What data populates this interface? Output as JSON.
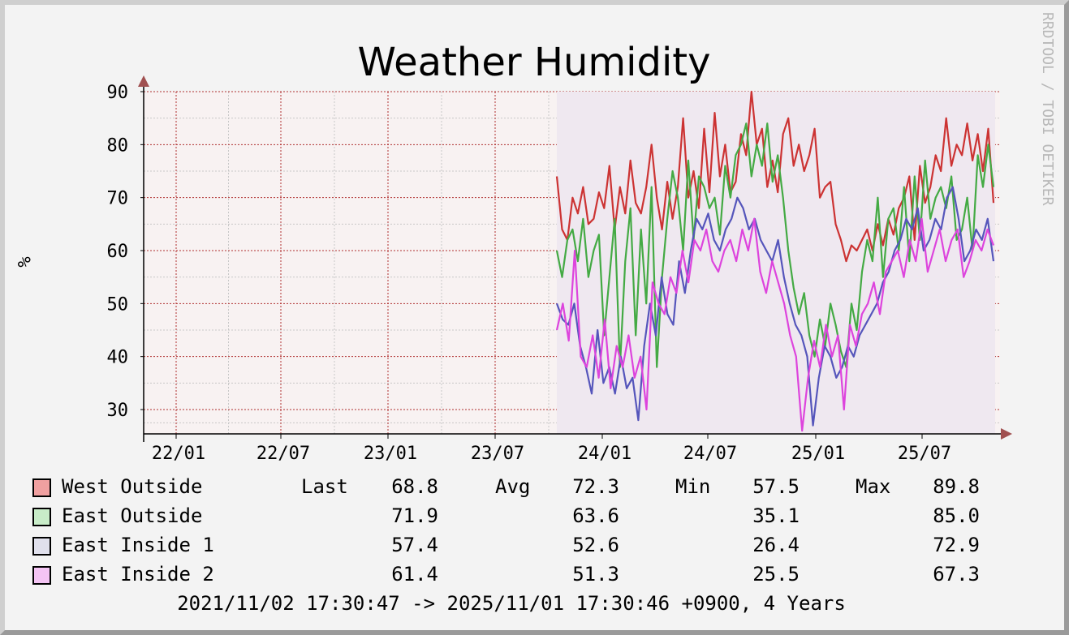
{
  "chart_data": {
    "type": "line",
    "title": "Weather Humidity",
    "ylabel": "%",
    "ylim": [
      25,
      92
    ],
    "yticks": [
      30,
      40,
      50,
      60,
      70,
      80,
      90
    ],
    "x_tick_labels": [
      "22/01",
      "22/07",
      "23/01",
      "23/07",
      "24/01",
      "24/07",
      "25/01",
      "25/07"
    ],
    "grid": true,
    "watermark": "RRDTOOL / TOBI OETIKER",
    "series": [
      {
        "name": "West Outside",
        "color": "#cc3333",
        "legend_fill": "#f0a0a0",
        "last": "68.8",
        "avg": "72.3",
        "min": "57.5",
        "max": "89.8",
        "values": [
          74,
          64,
          62,
          70,
          67,
          72,
          65,
          66,
          71,
          68,
          76,
          64,
          72,
          67,
          77,
          69,
          67,
          72,
          80,
          70,
          64,
          73,
          66,
          72,
          85,
          70,
          75,
          68,
          83,
          71,
          86,
          74,
          80,
          71,
          73,
          82,
          78,
          90,
          80,
          83,
          72,
          77,
          71,
          82,
          85,
          76,
          80,
          75,
          78,
          83,
          70,
          72,
          73,
          65,
          62,
          58,
          61,
          60,
          62,
          64,
          60,
          65,
          61,
          66,
          63,
          68,
          70,
          74,
          62,
          76,
          69,
          72,
          78,
          75,
          85,
          76,
          80,
          78,
          84,
          77,
          82,
          75,
          83,
          69
        ]
      },
      {
        "name": "East Outside",
        "color": "#44aa44",
        "legend_fill": "#c8ecc8",
        "last": "71.9",
        "avg": "63.6",
        "min": "35.1",
        "max": "85.0",
        "values": [
          60,
          55,
          62,
          64,
          58,
          66,
          55,
          60,
          63,
          44,
          55,
          66,
          38,
          58,
          68,
          44,
          64,
          50,
          72,
          38,
          55,
          66,
          75,
          70,
          60,
          77,
          62,
          74,
          72,
          68,
          70,
          63,
          76,
          70,
          78,
          80,
          84,
          74,
          80,
          76,
          84,
          73,
          78,
          70,
          60,
          53,
          48,
          52,
          44,
          40,
          47,
          42,
          50,
          46,
          41,
          38,
          50,
          45,
          56,
          62,
          58,
          70,
          55,
          66,
          68,
          60,
          72,
          58,
          74,
          62,
          77,
          66,
          70,
          72,
          68,
          74,
          62,
          64,
          70,
          60,
          78,
          72,
          80,
          72
        ]
      },
      {
        "name": "East Inside 1",
        "color": "#5555bb",
        "legend_fill": "#e0e0ec",
        "last": "57.4",
        "avg": "52.6",
        "min": "26.4",
        "max": "72.9",
        "values": [
          50,
          47,
          46,
          50,
          42,
          38,
          33,
          45,
          35,
          38,
          33,
          40,
          34,
          36,
          28,
          42,
          50,
          44,
          55,
          48,
          46,
          58,
          52,
          60,
          66,
          64,
          67,
          62,
          60,
          64,
          66,
          70,
          68,
          64,
          66,
          62,
          60,
          58,
          62,
          55,
          50,
          46,
          44,
          40,
          27,
          36,
          42,
          40,
          36,
          38,
          42,
          40,
          44,
          46,
          48,
          50,
          54,
          56,
          60,
          62,
          66,
          64,
          68,
          60,
          62,
          66,
          64,
          70,
          72,
          66,
          58,
          60,
          64,
          62,
          66,
          58
        ]
      },
      {
        "name": "East Inside 2",
        "color": "#dd44dd",
        "legend_fill": "#f4c4f4",
        "last": "61.4",
        "avg": "51.3",
        "min": "25.5",
        "max": "67.3",
        "values": [
          45,
          50,
          43,
          60,
          40,
          38,
          44,
          36,
          47,
          34,
          42,
          38,
          44,
          36,
          40,
          30,
          54,
          50,
          48,
          55,
          52,
          60,
          54,
          62,
          60,
          64,
          58,
          56,
          60,
          62,
          58,
          64,
          60,
          66,
          56,
          52,
          58,
          54,
          50,
          44,
          40,
          26,
          36,
          43,
          38,
          46,
          40,
          44,
          30,
          46,
          42,
          48,
          50,
          54,
          48,
          56,
          58,
          60,
          55,
          62,
          58,
          66,
          56,
          60,
          64,
          58,
          62,
          64,
          55,
          58,
          62,
          60,
          64,
          61
        ]
      }
    ]
  },
  "legend": {
    "last_label": "Last",
    "avg_label": "Avg",
    "min_label": "Min",
    "max_label": "Max"
  },
  "footer": "2021/11/02 17:30:47 -> 2025/11/01 17:30:46 +0900, 4 Years"
}
